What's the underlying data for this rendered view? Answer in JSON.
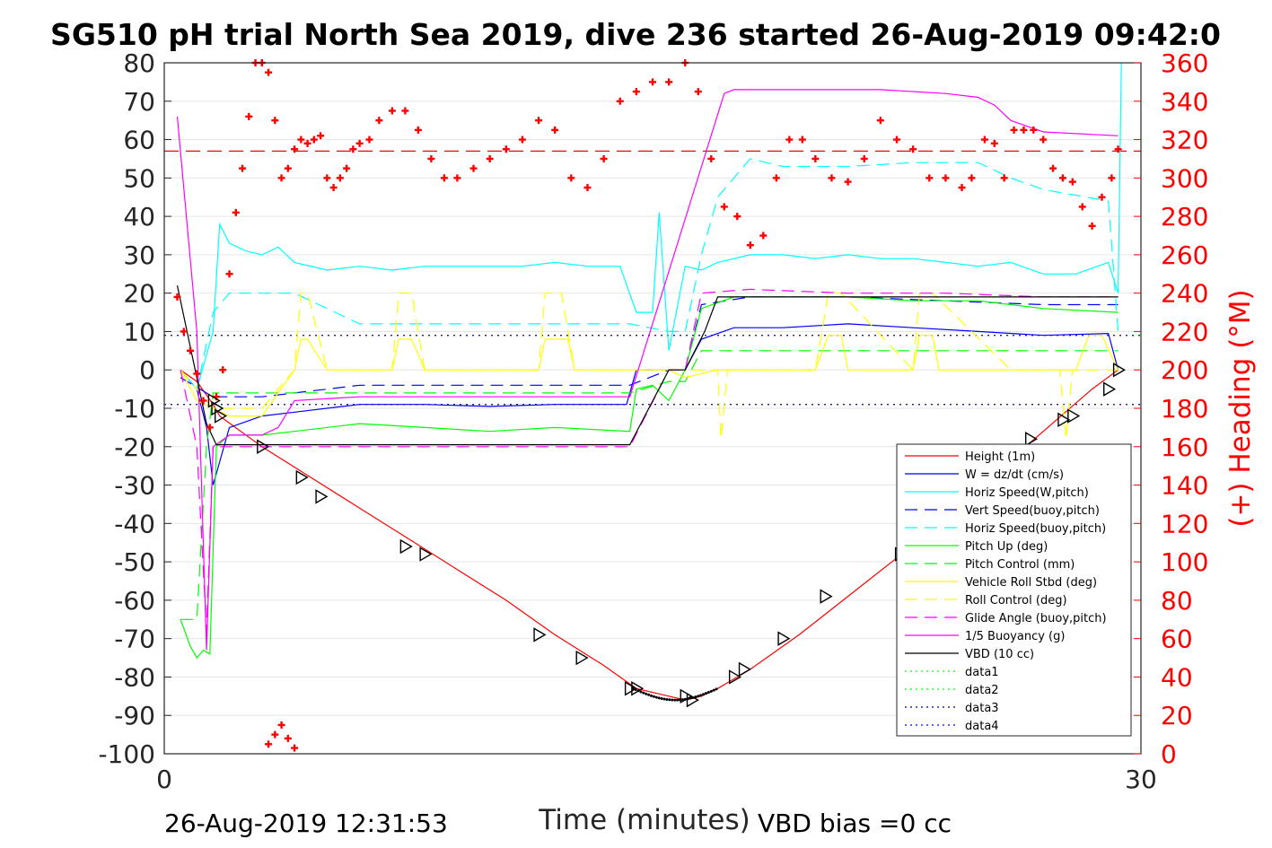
{
  "chart_data": {
    "type": "line",
    "title": "SG510 pH trial North Sea 2019, dive 236 started 26-Aug-2019 09:42:0",
    "xlabel": "Time (minutes)",
    "ylabel_right": "(+) Heading (°M)",
    "xlim": [
      0,
      30
    ],
    "ylim": [
      -100,
      80
    ],
    "ylim_right": [
      0,
      360
    ],
    "x_ticks": [
      "0",
      "30"
    ],
    "y_ticks": [
      "80",
      "70",
      "60",
      "50",
      "40",
      "30",
      "20",
      "10",
      "0",
      "-10",
      "-20",
      "-30",
      "-40",
      "-50",
      "-60",
      "-70",
      "-80",
      "-90",
      "-100"
    ],
    "y_ticks_right": [
      "360",
      "340",
      "320",
      "300",
      "280",
      "260",
      "240",
      "220",
      "200",
      "180",
      "160",
      "140",
      "120",
      "100",
      "80",
      "60",
      "40",
      "20",
      "0"
    ],
    "grid": true,
    "legend_position": "bottom-right",
    "footer_left": "26-Aug-2019 12:31:53",
    "footer_right": "VBD bias =0 cc",
    "reference_lines": [
      {
        "axis": "right",
        "y": 314,
        "color": "#ff0000",
        "style": "dashed"
      },
      {
        "axis": "left",
        "y": 9,
        "color": "#000080",
        "style": "dotted"
      },
      {
        "axis": "left",
        "y": -9,
        "color": "#000080",
        "style": "dotted"
      }
    ],
    "series": [
      {
        "name": "Height (1m)",
        "color": "#ff0000",
        "style": "solid",
        "axis": "left",
        "x": [
          0.5,
          1.0,
          1.5,
          1.7,
          3.0,
          4.5,
          6.0,
          7.5,
          9.0,
          10.5,
          12.0,
          13.5,
          14.5,
          15.5,
          16.0,
          16.5,
          17.0,
          18.0,
          19.5,
          21.0,
          22.5,
          24.0,
          25.5,
          27.0,
          28.5,
          29.3
        ],
        "y": [
          0,
          -3,
          -9,
          -12,
          -20,
          -28,
          -36,
          -44,
          -52,
          -60,
          -69,
          -77,
          -83,
          -85,
          -86,
          -85,
          -83,
          -78,
          -69,
          -59,
          -49,
          -38,
          -27,
          -16,
          -5,
          0
        ]
      },
      {
        "name": "W = dz/dt (cm/s)",
        "color": "#0000ff",
        "style": "solid",
        "axis": "left",
        "x": [
          0.5,
          1.0,
          1.3,
          1.5,
          2.0,
          3.0,
          4.0,
          6.0,
          8.0,
          10.0,
          12.0,
          13.5,
          14.2,
          14.5,
          15.5,
          16.0,
          16.5,
          17.5,
          19.0,
          21.0,
          23.0,
          25.0,
          27.0,
          29.0,
          29.3
        ],
        "y": [
          0,
          -5,
          -15,
          -30,
          -15,
          -12,
          -11,
          -9,
          -9,
          -9.5,
          -9,
          -9,
          -9,
          0,
          0,
          0,
          8,
          11,
          11,
          12,
          11,
          10,
          9,
          9.5,
          0
        ]
      },
      {
        "name": "Horiz Speed(W,pitch)",
        "color": "#00ffff",
        "style": "solid",
        "axis": "left",
        "x": [
          0.5,
          1.0,
          1.5,
          1.7,
          2.0,
          2.5,
          3.0,
          3.5,
          4.0,
          5.0,
          6.0,
          7.0,
          8.0,
          9.0,
          10.0,
          11.0,
          12.0,
          13.0,
          14.0,
          14.5,
          15.0,
          15.2,
          15.5,
          16.0,
          16.5,
          17.0,
          18.0,
          19.0,
          20.0,
          21.0,
          22.0,
          23.0,
          24.0,
          25.0,
          26.0,
          27.0,
          28.0,
          29.0,
          29.3,
          29.4
        ],
        "y": [
          0,
          -5,
          10,
          38,
          33,
          31,
          30,
          32,
          28,
          26,
          27,
          26,
          27,
          27,
          27,
          27,
          28,
          27,
          27,
          15,
          15,
          41,
          5,
          27,
          26,
          28,
          30,
          30,
          29,
          30,
          29,
          29,
          28,
          27,
          28,
          25,
          25,
          28,
          20,
          80
        ]
      },
      {
        "name": "Vert Speed(buoy,pitch)",
        "color": "#0000ff",
        "style": "dashed",
        "axis": "left",
        "x": [
          0.5,
          1.5,
          3.0,
          6.0,
          9.0,
          12.0,
          14.3,
          15.5,
          16.0,
          16.5,
          18.0,
          21.0,
          24.0,
          27.0,
          29.3
        ],
        "y": [
          -2,
          -7,
          -7,
          -4,
          -4,
          -4,
          -4,
          0,
          0,
          17,
          19,
          19,
          18,
          17,
          17
        ]
      },
      {
        "name": "Horiz Speed(buoy,pitch)",
        "color": "#00ffff",
        "style": "dashed",
        "axis": "left",
        "x": [
          0.5,
          1.0,
          1.5,
          2.0,
          3.0,
          4.0,
          6.0,
          9.0,
          12.0,
          14.3,
          15.5,
          16.0,
          16.5,
          17.0,
          18.0,
          19.0,
          21.0,
          23.0,
          25.0,
          26.0,
          27.0,
          29.0,
          29.3
        ],
        "y": [
          0,
          -5,
          15,
          20,
          20,
          20,
          12,
          12,
          12,
          12,
          10,
          10,
          30,
          45,
          55,
          53,
          53,
          54,
          54,
          50,
          47,
          44,
          10
        ]
      },
      {
        "name": "Pitch Up (deg)",
        "color": "#00ff00",
        "style": "solid",
        "axis": "left",
        "x": [
          0.5,
          0.8,
          1.0,
          1.2,
          1.4,
          1.6,
          2.0,
          3.0,
          4.0,
          6.0,
          8.0,
          10.0,
          12.0,
          14.3,
          14.5,
          15.0,
          15.5,
          16.0,
          16.5,
          17.5,
          19.0,
          21.0,
          23.0,
          25.0,
          27.0,
          29.3
        ],
        "y": [
          -65,
          -72,
          -75,
          -73,
          -74,
          -20,
          -17,
          -17,
          -16,
          -14,
          -15,
          -16,
          -15,
          -16,
          -5,
          -4,
          -8,
          0,
          16,
          19,
          19,
          19,
          18,
          18,
          16,
          15
        ]
      },
      {
        "name": "Pitch Control (mm)",
        "color": "#00ff00",
        "style": "dashed",
        "axis": "left",
        "x": [
          0.5,
          1.0,
          1.3,
          1.5,
          2.0,
          3.0,
          6.0,
          9.0,
          12.0,
          14.3,
          15.5,
          16.0,
          16.5,
          19.0,
          22.0,
          25.0,
          27.0,
          29.3
        ],
        "y": [
          -65,
          -65,
          -20,
          -6,
          -6,
          -6,
          -6,
          -6,
          -6,
          -6,
          -3,
          -3,
          5,
          5,
          5,
          5,
          5,
          5
        ]
      },
      {
        "name": "Vehicle Roll Stbd (deg)",
        "color": "#ffff00",
        "style": "solid",
        "axis": "left",
        "x": [
          0.5,
          1.0,
          1.5,
          2.0,
          3.0,
          4.0,
          4.2,
          4.4,
          5.0,
          6.0,
          7.0,
          7.2,
          7.6,
          8.0,
          10.0,
          11.5,
          11.7,
          12.4,
          12.6,
          14.3,
          15.5,
          16.0,
          17.0,
          18.0,
          19.0,
          20.0,
          20.4,
          20.8,
          21.0,
          22.0,
          23.0,
          23.2,
          23.6,
          23.8,
          25.0,
          26.0,
          27.0,
          28.0,
          28.4,
          28.8,
          29.3
        ],
        "y": [
          0,
          -8,
          -10,
          -12,
          -12,
          0,
          8,
          8,
          0,
          0,
          0,
          8,
          8,
          0,
          0,
          0,
          8,
          8,
          0,
          0,
          0,
          -2,
          0,
          0,
          0,
          0,
          9,
          9,
          0,
          0,
          0,
          9,
          9,
          0,
          0,
          0,
          0,
          0,
          9,
          9,
          0
        ]
      },
      {
        "name": "Roll Control (deg)",
        "color": "#ffff00",
        "style": "dashed",
        "axis": "left",
        "x": [
          0.5,
          1.5,
          3.0,
          4.0,
          4.2,
          4.4,
          5.0,
          7.0,
          7.2,
          7.6,
          8.0,
          11.5,
          11.7,
          12.2,
          12.6,
          14.3,
          17.0,
          17.1,
          17.3,
          18.0,
          20.0,
          20.4,
          20.8,
          23.0,
          23.2,
          23.6,
          26.0,
          27.5,
          27.7,
          27.9,
          28.0,
          29.3
        ],
        "y": [
          0,
          -10,
          -10,
          0,
          20,
          20,
          0,
          0,
          20,
          20,
          0,
          0,
          20,
          20,
          0,
          0,
          0,
          -18,
          0,
          0,
          0,
          20,
          20,
          0,
          20,
          20,
          0,
          0,
          -18,
          0,
          0,
          0
        ]
      },
      {
        "name": "Glide Angle (buoy,pitch)",
        "color": "#ff00ff",
        "style": "dashed",
        "axis": "left",
        "x": [
          0.5,
          1.0,
          1.3,
          1.5,
          2.0,
          3.0,
          6.0,
          9.0,
          12.0,
          14.3,
          15.5,
          16.0,
          16.5,
          18.0,
          21.0,
          24.0,
          27.0,
          29.3
        ],
        "y": [
          0,
          -20,
          -68,
          -20,
          -20,
          -20,
          -20,
          -20,
          -20,
          -20,
          0,
          0,
          20,
          21,
          20,
          20,
          19,
          19
        ]
      },
      {
        "name": "1/5 Buoyancy (g)",
        "color": "#ff00ff",
        "style": "solid",
        "axis": "left",
        "x": [
          0.4,
          1.0,
          1.3,
          1.5,
          2.0,
          3.0,
          3.5,
          4.0,
          6.0,
          9.0,
          12.0,
          14.3,
          17.2,
          17.5,
          20.0,
          22.0,
          24.0,
          25.0,
          25.5,
          26.0,
          27.0,
          29.3
        ],
        "y": [
          66,
          10,
          -73,
          -20,
          -17,
          -17,
          -15,
          -8,
          -7,
          -7,
          -7,
          -7,
          72,
          73,
          73,
          73,
          72,
          71,
          69,
          65,
          62,
          61
        ]
      },
      {
        "name": "VBD (10 cc)",
        "color": "#000000",
        "style": "solid",
        "axis": "left",
        "x": [
          0.4,
          1.3,
          1.6,
          3.0,
          6.0,
          9.0,
          12.0,
          14.3,
          15.5,
          16.0,
          16.6,
          17.0,
          20.0,
          24.0,
          29.3
        ],
        "y": [
          22,
          -14,
          -19.5,
          -19.5,
          -19.5,
          -19.5,
          -19.5,
          -19.5,
          0,
          0,
          10,
          19,
          19,
          19,
          19
        ]
      },
      {
        "name": "data1",
        "color": "#00ff00",
        "style": "dotted",
        "axis": "left",
        "x": [],
        "y": []
      },
      {
        "name": "data2",
        "color": "#00ff00",
        "style": "dotted",
        "axis": "left",
        "x": [],
        "y": []
      },
      {
        "name": "data3",
        "color": "#000080",
        "style": "dotted",
        "axis": "left",
        "x": [],
        "y": []
      },
      {
        "name": "data4",
        "color": "#0000ff",
        "style": "dotted",
        "axis": "left",
        "x": [],
        "y": []
      }
    ],
    "heading": {
      "color": "#ff0000",
      "marker": "+",
      "axis": "right",
      "x": [
        0.4,
        0.6,
        0.8,
        1.0,
        1.2,
        1.4,
        1.6,
        1.8,
        2.0,
        2.2,
        2.4,
        2.6,
        2.8,
        3.0,
        3.2,
        3.4,
        3.6,
        3.8,
        4.0,
        4.2,
        4.4,
        4.6,
        4.8,
        5.0,
        5.2,
        5.4,
        5.6,
        5.8,
        6.0,
        6.3,
        6.6,
        7.0,
        7.4,
        7.8,
        8.2,
        8.6,
        9.0,
        9.5,
        10.0,
        10.5,
        11.0,
        11.5,
        12.0,
        12.5,
        13.0,
        13.5,
        14.0,
        14.5,
        15.0,
        15.5,
        16.0,
        16.4,
        16.8,
        17.2,
        17.6,
        18.0,
        18.4,
        18.8,
        19.2,
        19.6,
        20.0,
        20.5,
        21.0,
        21.5,
        22.0,
        22.5,
        23.0,
        23.5,
        24.0,
        24.5,
        24.8,
        25.2,
        25.5,
        25.8,
        26.1,
        26.4,
        26.7,
        27.0,
        27.3,
        27.6,
        27.9,
        28.2,
        28.5,
        28.8,
        29.1,
        29.3
      ],
      "y": [
        238,
        220,
        210,
        198,
        184,
        170,
        186,
        200,
        250,
        282,
        305,
        332,
        360,
        360,
        355,
        330,
        300,
        305,
        315,
        320,
        318,
        320,
        322,
        300,
        295,
        300,
        305,
        315,
        318,
        320,
        330,
        335,
        335,
        325,
        310,
        300,
        300,
        305,
        310,
        315,
        320,
        330,
        325,
        300,
        295,
        310,
        340,
        345,
        350,
        350,
        360,
        345,
        310,
        285,
        280,
        265,
        270,
        300,
        320,
        320,
        310,
        300,
        298,
        310,
        330,
        320,
        315,
        300,
        300,
        295,
        300,
        320,
        318,
        300,
        325,
        325,
        325,
        320,
        305,
        300,
        298,
        285,
        275,
        290,
        300,
        315
      ]
    },
    "heading_spurious": {
      "x": [
        3.2,
        3.4,
        3.6,
        3.8,
        4.0
      ],
      "y": [
        5,
        10,
        15,
        8,
        3
      ]
    },
    "triangle_markers": {
      "x": [
        1.5,
        1.6,
        1.7,
        3.0,
        4.2,
        4.8,
        7.4,
        8.0,
        11.5,
        12.8,
        14.3,
        14.5,
        16.0,
        16.2,
        17.5,
        17.8,
        19.0,
        20.3,
        22.6,
        23.2,
        24.7,
        26.6,
        27.6,
        27.9,
        29.0,
        29.3
      ],
      "y": [
        -8,
        -10,
        -12,
        -20,
        -28,
        -33,
        -46,
        -48,
        -69,
        -75,
        -83,
        -83,
        -85,
        -86,
        -80,
        -78,
        -70,
        -59,
        -48,
        -39,
        -30,
        -18,
        -13,
        -12,
        -5,
        0
      ]
    }
  }
}
